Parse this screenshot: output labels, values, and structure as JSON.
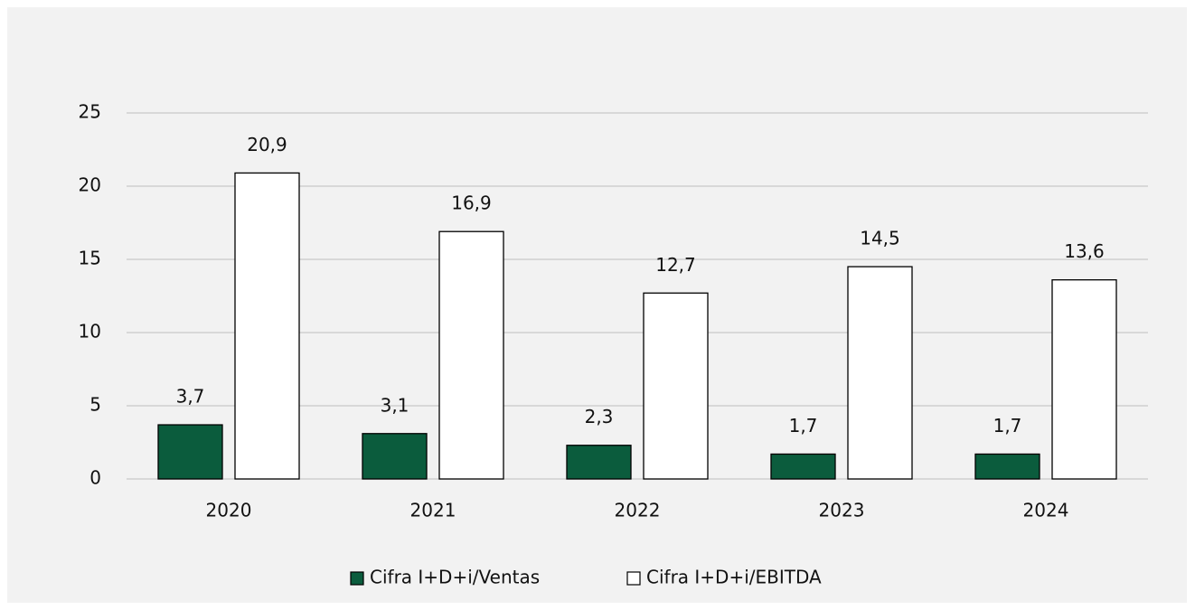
{
  "chart_data": {
    "type": "bar",
    "categories": [
      "2020",
      "2021",
      "2022",
      "2023",
      "2024"
    ],
    "series": [
      {
        "name": "Cifra I+D+i/Ventas",
        "color": "#0b5c3d",
        "values": [
          3.7,
          3.1,
          2.3,
          1.7,
          1.7
        ],
        "value_labels": [
          "3,7",
          "3,1",
          "2,3",
          "1,7",
          "1,7"
        ]
      },
      {
        "name": "Cifra I+D+i/EBITDA",
        "color": "#ffffff",
        "values": [
          20.9,
          16.9,
          12.7,
          14.5,
          13.6
        ],
        "value_labels": [
          "20,9",
          "16,9",
          "12,7",
          "14,5",
          "13,6"
        ]
      }
    ],
    "ylim": [
      0,
      25
    ],
    "yticks": [
      0,
      5,
      10,
      15,
      20,
      25
    ],
    "grid": true,
    "legend": "bottom"
  }
}
